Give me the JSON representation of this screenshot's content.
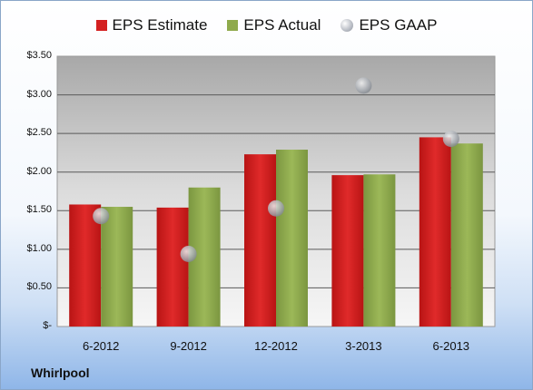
{
  "chart_data": {
    "type": "bar",
    "categories": [
      "6-2012",
      "9-2012",
      "12-2012",
      "3-2013",
      "6-2013"
    ],
    "series": [
      {
        "name": "EPS Estimate",
        "kind": "bar",
        "color": "#d42020",
        "values": [
          1.58,
          1.54,
          2.23,
          1.96,
          2.45
        ]
      },
      {
        "name": "EPS Actual",
        "kind": "bar",
        "color": "#8faa4c",
        "values": [
          1.55,
          1.8,
          2.29,
          1.97,
          2.37
        ]
      },
      {
        "name": "EPS GAAP",
        "kind": "scatter",
        "color": "#b8bcc4",
        "values": [
          1.43,
          0.94,
          1.53,
          3.12,
          2.43
        ]
      }
    ],
    "yticks": [
      "$-",
      "$0.50",
      "$1.00",
      "$1.50",
      "$2.00",
      "$2.50",
      "$3.00",
      "$3.50"
    ],
    "ylim": [
      0,
      3.5
    ],
    "grid": true,
    "legend": "top-center"
  },
  "brand": "Whirlpool"
}
